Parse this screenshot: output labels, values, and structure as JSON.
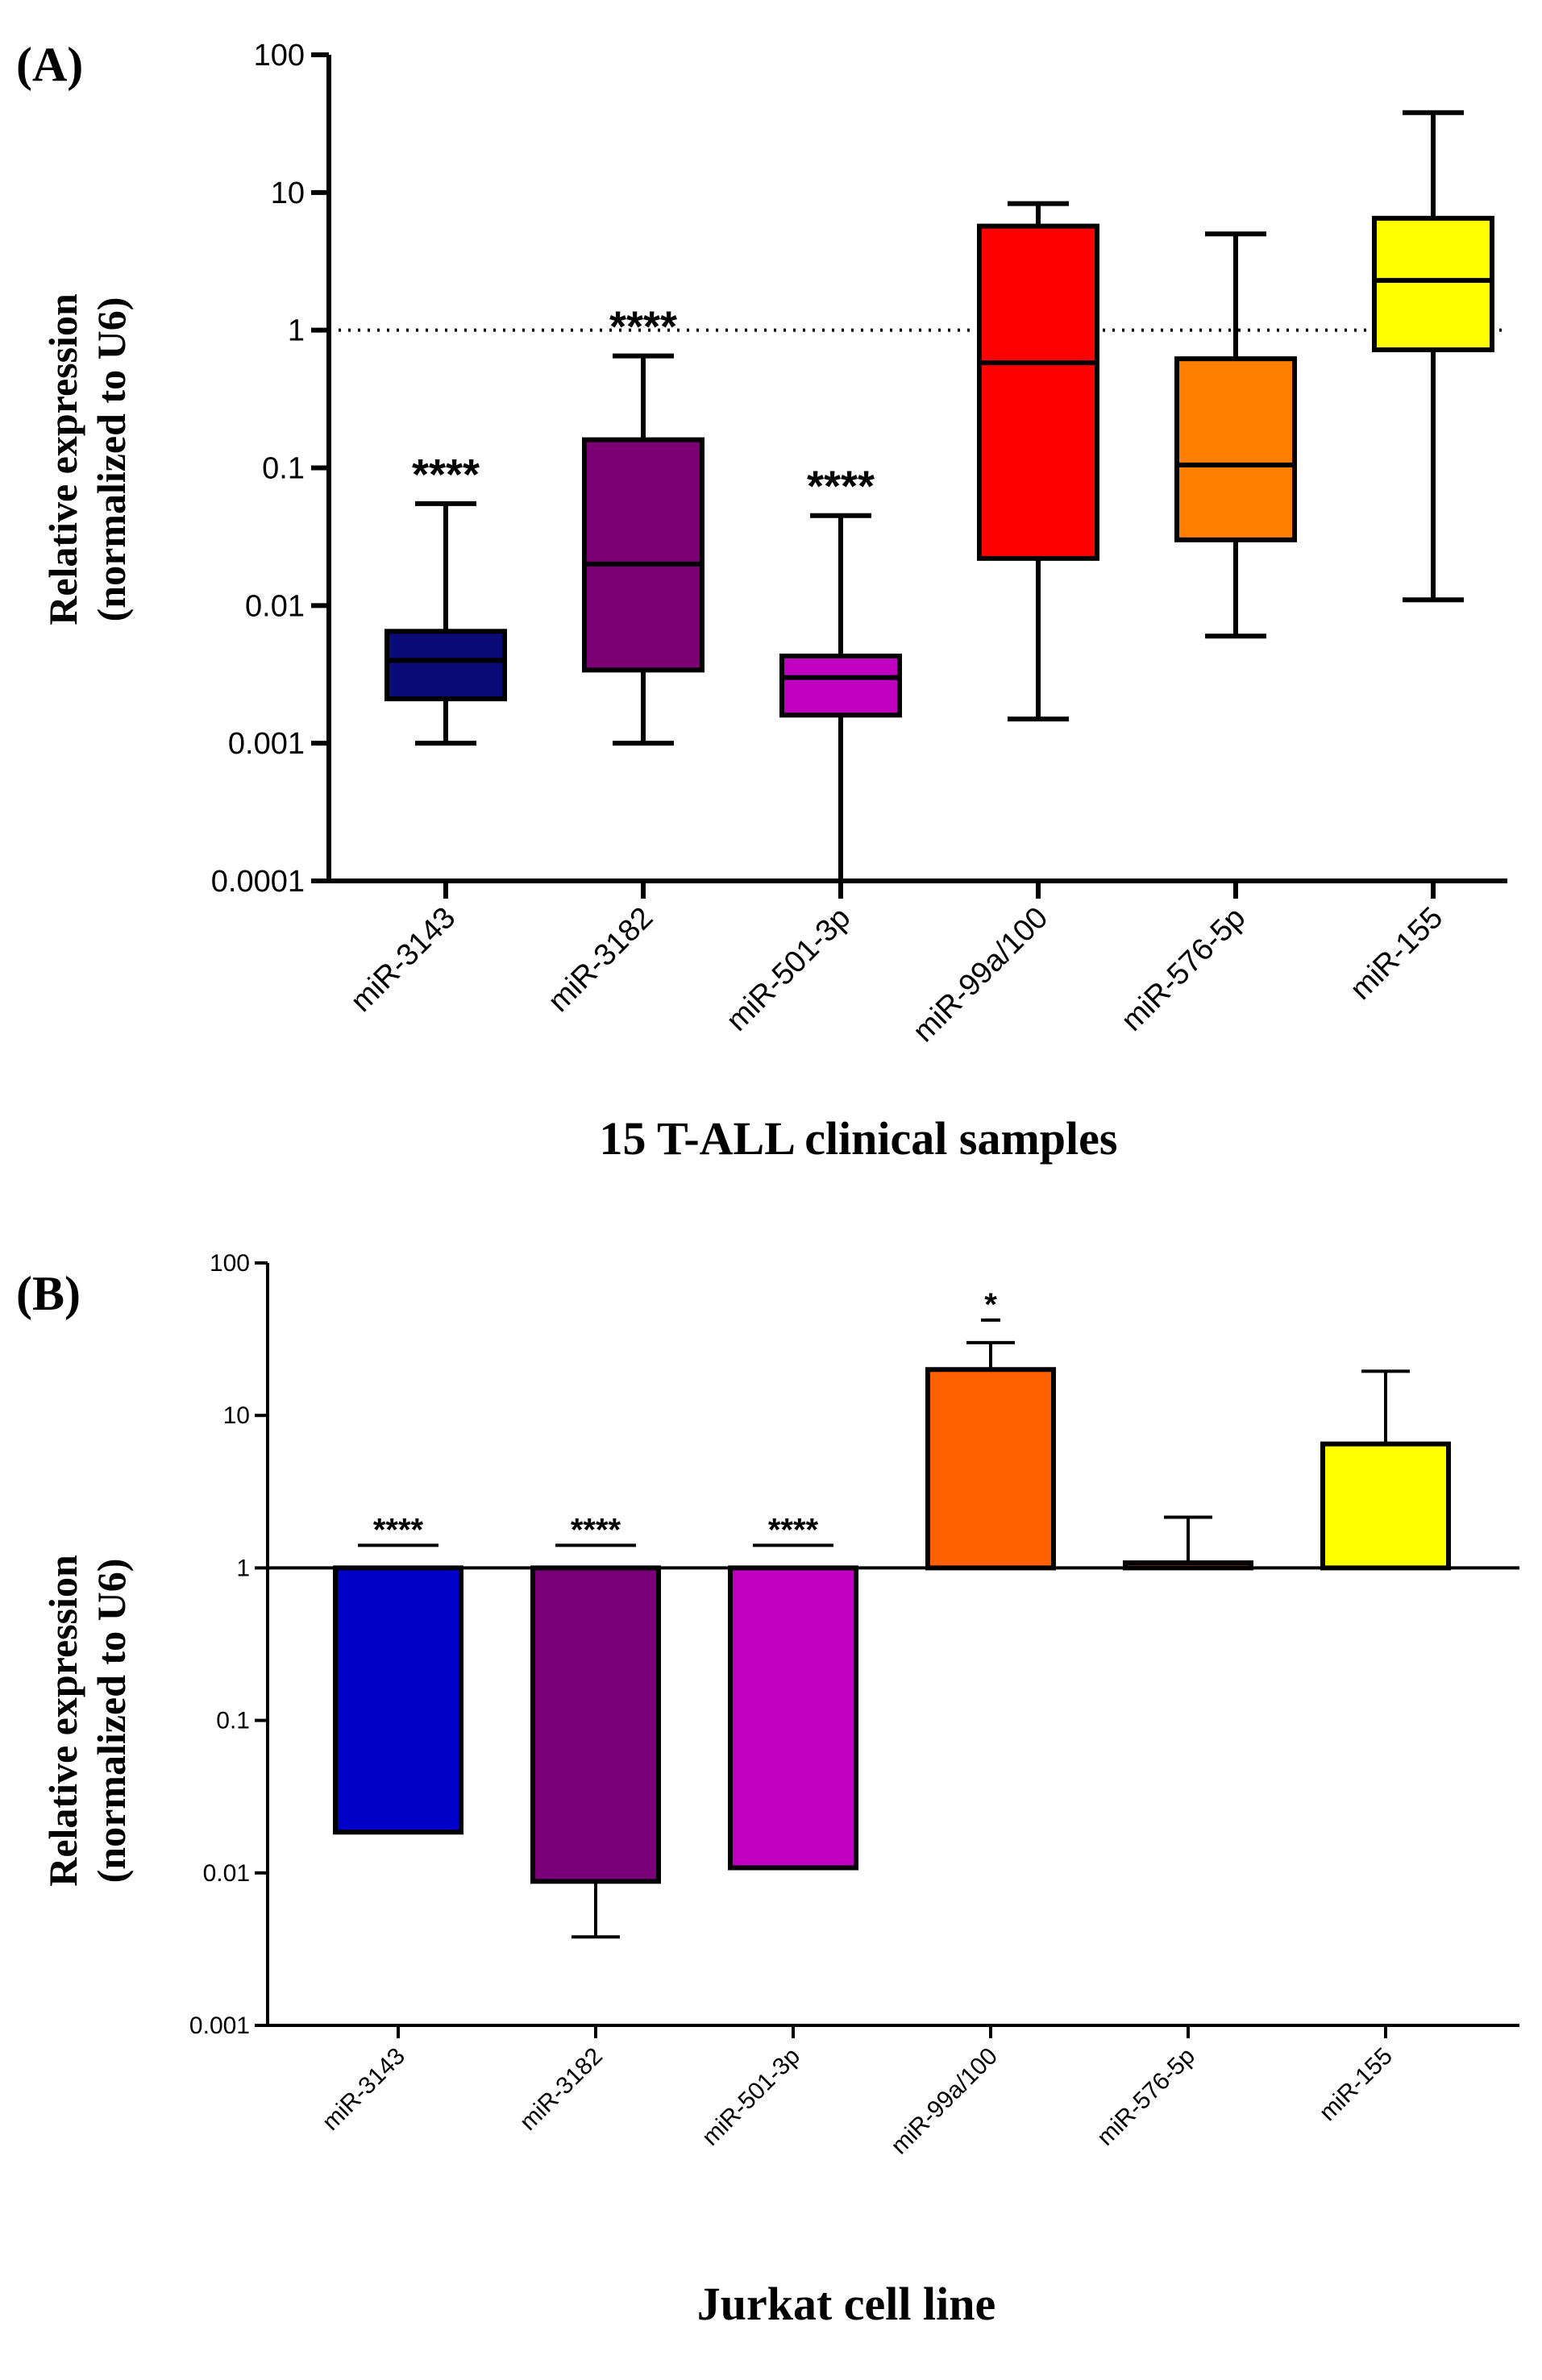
{
  "chart_data": [
    {
      "panel_label": "(A)",
      "type": "box",
      "title": "",
      "ylabel_line1": "Relative expression",
      "ylabel_line2": "(normalized to U6)",
      "xlabel": "15 T-ALL clinical samples",
      "yscale": "log",
      "ylim": [
        0.0001,
        100
      ],
      "ytick_labels": [
        "0.0001",
        "0.001",
        "0.01",
        "0.1",
        "1",
        "10",
        "100"
      ],
      "reference_line": 1,
      "reference_line_style": "dotted",
      "categories": [
        "miR-3143",
        "miR-3182",
        "miR-501-3p",
        "miR-99a/100",
        "miR-576-5p",
        "miR-155"
      ],
      "colors": [
        "#0a0a78",
        "#7a0074",
        "#c000c0",
        "#ff0000",
        "#ff8000",
        "#ffff00"
      ],
      "boxes": [
        {
          "min": 0.001,
          "q1": 0.0021,
          "median": 0.004,
          "q3": 0.0065,
          "max": 0.055,
          "sig": "****"
        },
        {
          "min": 0.001,
          "q1": 0.0034,
          "median": 0.02,
          "q3": 0.16,
          "max": 0.65,
          "sig": "****"
        },
        {
          "min": 0.0001,
          "q1": 0.0016,
          "median": 0.003,
          "q3": 0.0043,
          "max": 0.045,
          "sig": "****"
        },
        {
          "min": 0.0015,
          "q1": 0.022,
          "median": 0.58,
          "q3": 5.7,
          "max": 8.3,
          "sig": ""
        },
        {
          "min": 0.006,
          "q1": 0.03,
          "median": 0.105,
          "q3": 0.62,
          "max": 5.0,
          "sig": ""
        },
        {
          "min": 0.011,
          "q1": 0.72,
          "median": 2.3,
          "q3": 6.5,
          "max": 38,
          "sig": ""
        }
      ]
    },
    {
      "panel_label": "(B)",
      "type": "bar",
      "title": "",
      "ylabel_line1": "Relative expression",
      "ylabel_line2": "(normalized to U6)",
      "xlabel": "Jurkat cell line",
      "yscale": "log",
      "ylim": [
        0.001,
        100
      ],
      "ytick_labels": [
        "0.001",
        "0.01",
        "0.1",
        "1",
        "10",
        "100"
      ],
      "baseline": 1,
      "categories": [
        "miR-3143",
        "miR-3182",
        "miR-501-3p",
        "miR-99a/100",
        "miR-576-5p",
        "miR-155"
      ],
      "colors": [
        "#0000c8",
        "#7a007a",
        "#c000c0",
        "#ff6000",
        "#ff8000",
        "#ffff00"
      ],
      "bars": [
        {
          "value": 0.0185,
          "error_end": 0.0185,
          "sig": "****"
        },
        {
          "value": 0.0088,
          "error_end": 0.0038,
          "sig": "****"
        },
        {
          "value": 0.0108,
          "error_end": 0.0108,
          "sig": "****"
        },
        {
          "value": 20,
          "error_end": 30,
          "sig": "*"
        },
        {
          "value": 1.08,
          "error_end": 2.15,
          "sig": ""
        },
        {
          "value": 6.5,
          "error_end": 19.5,
          "sig": ""
        }
      ]
    }
  ]
}
